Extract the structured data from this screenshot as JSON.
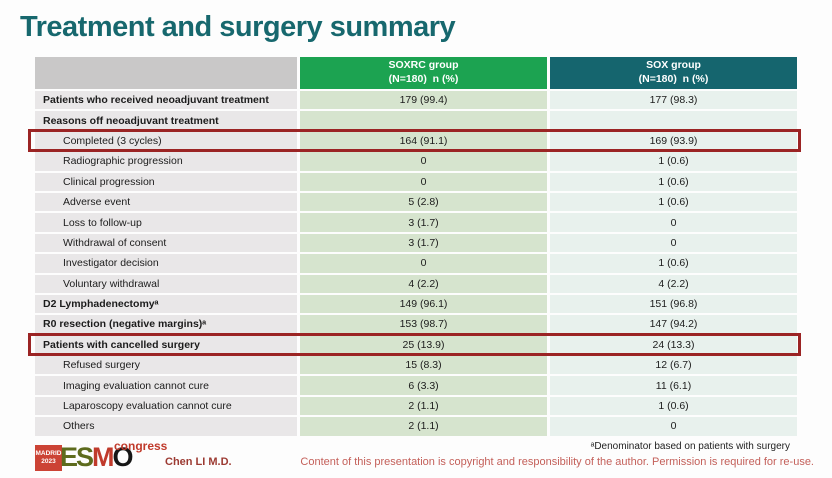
{
  "slide": {
    "title": "Treatment and surgery summary",
    "presenter": "Chen LI M.D.",
    "footnote": "ᵃDenominator based on patients with surgery",
    "copyright": "Content of this presentation is copyright and responsibility of the author. Permission is required for re-use."
  },
  "logo": {
    "location": "MADRID",
    "year": "2023",
    "letter_e": "E",
    "letter_s": "S",
    "letter_m": "M",
    "letter_o": "O",
    "congress": "congress"
  },
  "colors": {
    "title_teal": "#17686e",
    "soxrc_header_green": "#1ca351",
    "sox_header_teal": "#15656e",
    "label_column_bg": "#e9e7e8",
    "soxrc_column_bg": "#d6e4ce",
    "sox_column_bg": "#e8f1ed",
    "highlight_box_red": "#9b2424",
    "copyright_red": "#c4605a"
  },
  "table": {
    "columns": [
      {
        "id": "soxrc",
        "line1": "SOXRC group",
        "line2": "(N=180)  n (%)",
        "color": "#1ca351"
      },
      {
        "id": "sox",
        "line1": "SOX group",
        "line2": "(N=180)  n (%)",
        "color": "#15656e"
      }
    ],
    "rows": [
      {
        "label": "Patients who received neoadjuvant treatment",
        "soxrc": "179 (99.4)",
        "sox": "177 (98.3)",
        "bold": true,
        "highlight": false
      },
      {
        "label": "Reasons off neoadjuvant treatment",
        "soxrc": "",
        "sox": "",
        "bold": true,
        "highlight": false
      },
      {
        "label": "Completed (3 cycles)",
        "soxrc": "164 (91.1)",
        "sox": "169 (93.9)",
        "bold": false,
        "highlight": true
      },
      {
        "label": "Radiographic progression",
        "soxrc": "0",
        "sox": "1 (0.6)",
        "bold": false,
        "highlight": false
      },
      {
        "label": "Clinical progression",
        "soxrc": "0",
        "sox": "1 (0.6)",
        "bold": false,
        "highlight": false
      },
      {
        "label": "Adverse event",
        "soxrc": "5 (2.8)",
        "sox": "1 (0.6)",
        "bold": false,
        "highlight": false
      },
      {
        "label": "Loss to follow-up",
        "soxrc": "3 (1.7)",
        "sox": "0",
        "bold": false,
        "highlight": false
      },
      {
        "label": "Withdrawal of consent",
        "soxrc": "3 (1.7)",
        "sox": "0",
        "bold": false,
        "highlight": false
      },
      {
        "label": "Investigator decision",
        "soxrc": "0",
        "sox": "1 (0.6)",
        "bold": false,
        "highlight": false
      },
      {
        "label": "Voluntary withdrawal",
        "soxrc": "4 (2.2)",
        "sox": "4 (2.2)",
        "bold": false,
        "highlight": false
      },
      {
        "label": "D2 Lymphadenectomyᵃ",
        "soxrc": "149 (96.1)",
        "sox": "151 (96.8)",
        "bold": true,
        "highlight": false
      },
      {
        "label": "R0 resection (negative margins)ᵃ",
        "soxrc": "153 (98.7)",
        "sox": "147 (94.2)",
        "bold": true,
        "highlight": false
      },
      {
        "label": "Patients with cancelled surgery",
        "soxrc": "25 (13.9)",
        "sox": "24 (13.3)",
        "bold": true,
        "highlight": true
      },
      {
        "label": "Refused surgery",
        "soxrc": "15 (8.3)",
        "sox": "12 (6.7)",
        "bold": false,
        "highlight": false
      },
      {
        "label": "Imaging evaluation cannot cure",
        "soxrc": "6 (3.3)",
        "sox": "11 (6.1)",
        "bold": false,
        "highlight": false
      },
      {
        "label": "Laparoscopy evaluation cannot cure",
        "soxrc": "2 (1.1)",
        "sox": "1 (0.6)",
        "bold": false,
        "highlight": false
      },
      {
        "label": "Others",
        "soxrc": "2 (1.1)",
        "sox": "0",
        "bold": false,
        "highlight": false
      }
    ]
  }
}
